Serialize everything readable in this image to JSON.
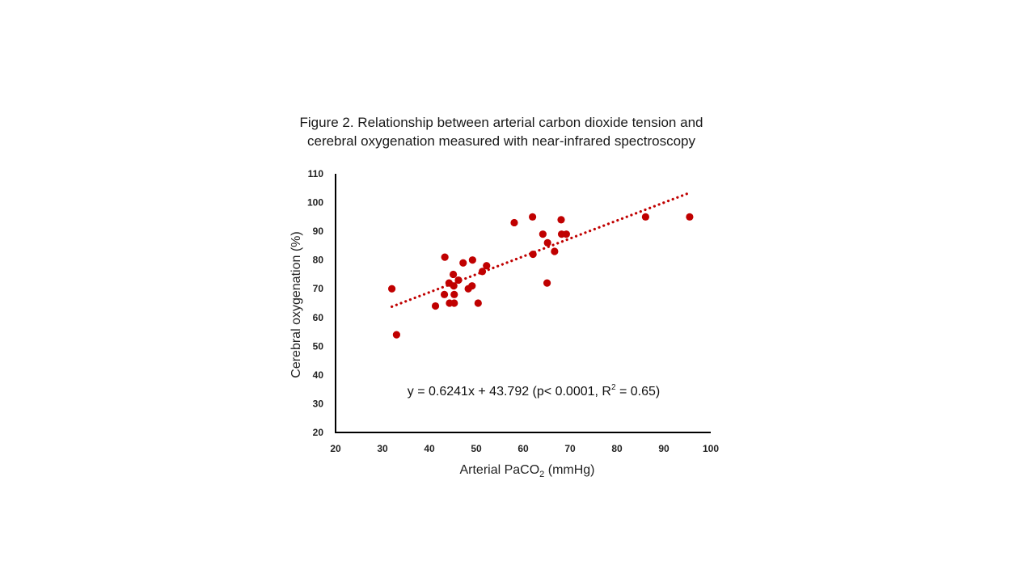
{
  "chart_data": {
    "type": "scatter",
    "title_lines": [
      "Figure 2. Relationship between arterial carbon dioxide tension and",
      "cerebral oxygenation measured with near-infrared spectroscopy"
    ],
    "xlabel": {
      "text": "Arterial PaCO",
      "sub": "2",
      "unit": " (mmHg)"
    },
    "ylabel": "Cerebral oxygenation (%)",
    "xlim": [
      20,
      100
    ],
    "ylim": [
      20,
      110
    ],
    "x_ticks": [
      20,
      30,
      40,
      50,
      60,
      70,
      80,
      90,
      100
    ],
    "y_ticks": [
      20,
      30,
      40,
      50,
      60,
      70,
      80,
      90,
      100,
      110
    ],
    "grid": false,
    "marker_color": "#C00000",
    "trendline": {
      "slope": 0.6241,
      "intercept": 43.792,
      "x_range": [
        32,
        95.5
      ],
      "style": "dotted",
      "color": "#C00000"
    },
    "annotation": {
      "prefix": "y = 0.6241x + 43.792 (p< 0.0001, R",
      "sup": "2",
      "suffix": " = 0.65)"
    },
    "points": [
      {
        "x": 32.0,
        "y": 70
      },
      {
        "x": 33.0,
        "y": 54
      },
      {
        "x": 41.3,
        "y": 64
      },
      {
        "x": 43.2,
        "y": 68
      },
      {
        "x": 43.3,
        "y": 81
      },
      {
        "x": 44.2,
        "y": 72
      },
      {
        "x": 44.3,
        "y": 65
      },
      {
        "x": 45.1,
        "y": 75
      },
      {
        "x": 45.2,
        "y": 71
      },
      {
        "x": 45.3,
        "y": 68
      },
      {
        "x": 45.3,
        "y": 65
      },
      {
        "x": 46.2,
        "y": 73
      },
      {
        "x": 47.2,
        "y": 79
      },
      {
        "x": 48.3,
        "y": 70
      },
      {
        "x": 49.1,
        "y": 71
      },
      {
        "x": 49.2,
        "y": 80
      },
      {
        "x": 50.4,
        "y": 65
      },
      {
        "x": 51.3,
        "y": 76
      },
      {
        "x": 52.2,
        "y": 78
      },
      {
        "x": 58.1,
        "y": 93
      },
      {
        "x": 62.0,
        "y": 95
      },
      {
        "x": 62.1,
        "y": 82
      },
      {
        "x": 64.2,
        "y": 89
      },
      {
        "x": 65.1,
        "y": 72
      },
      {
        "x": 65.2,
        "y": 86
      },
      {
        "x": 66.7,
        "y": 83
      },
      {
        "x": 68.1,
        "y": 94
      },
      {
        "x": 68.2,
        "y": 89
      },
      {
        "x": 69.2,
        "y": 89
      },
      {
        "x": 86.1,
        "y": 95
      },
      {
        "x": 95.5,
        "y": 95
      }
    ]
  }
}
